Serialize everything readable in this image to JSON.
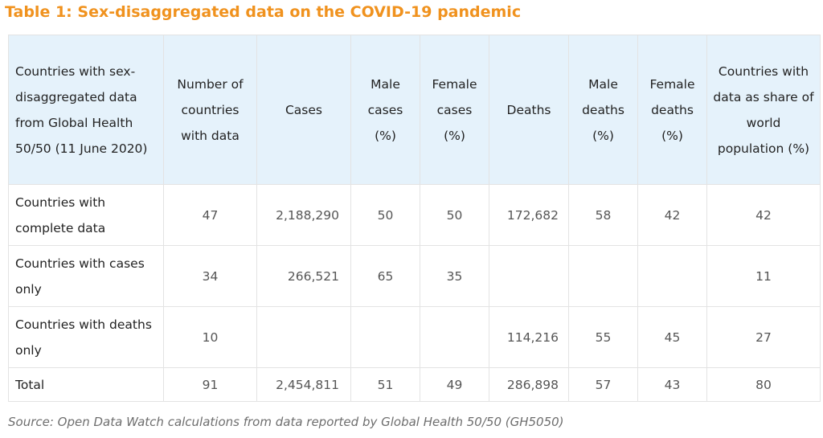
{
  "title": "Table 1: Sex-disaggregated data on the COVID-19 pandemic",
  "table": {
    "headers": [
      "Countries with sex-disaggregated data from Global Health 50/50 (11 June 2020)",
      "Number of countries with data",
      "Cases",
      "Male cases (%)",
      "Female cases (%)",
      "Deaths",
      "Male deaths (%)",
      "Female deaths (%)",
      "Countries with data as share of world population (%)"
    ],
    "rows": [
      [
        "Countries with complete data",
        "47",
        "2,188,290",
        "50",
        "50",
        "172,682",
        "58",
        "42",
        "42"
      ],
      [
        "Countries with cases only",
        "34",
        "266,521",
        "65",
        "35",
        "",
        "",
        "",
        "11"
      ],
      [
        "Countries with deaths only",
        "10",
        "",
        "",
        "",
        "114,216",
        "55",
        "45",
        "27"
      ],
      [
        "Total",
        "91",
        "2,454,811",
        "51",
        "49",
        "286,898",
        "57",
        "43",
        "80"
      ]
    ]
  },
  "source": "Source: Open Data Watch calculations from data reported by Global Health 50/50 (GH5050)",
  "colors": {
    "title": "#f0921e",
    "header_bg": "#e5f2fb",
    "border": "#e3e3e3"
  }
}
